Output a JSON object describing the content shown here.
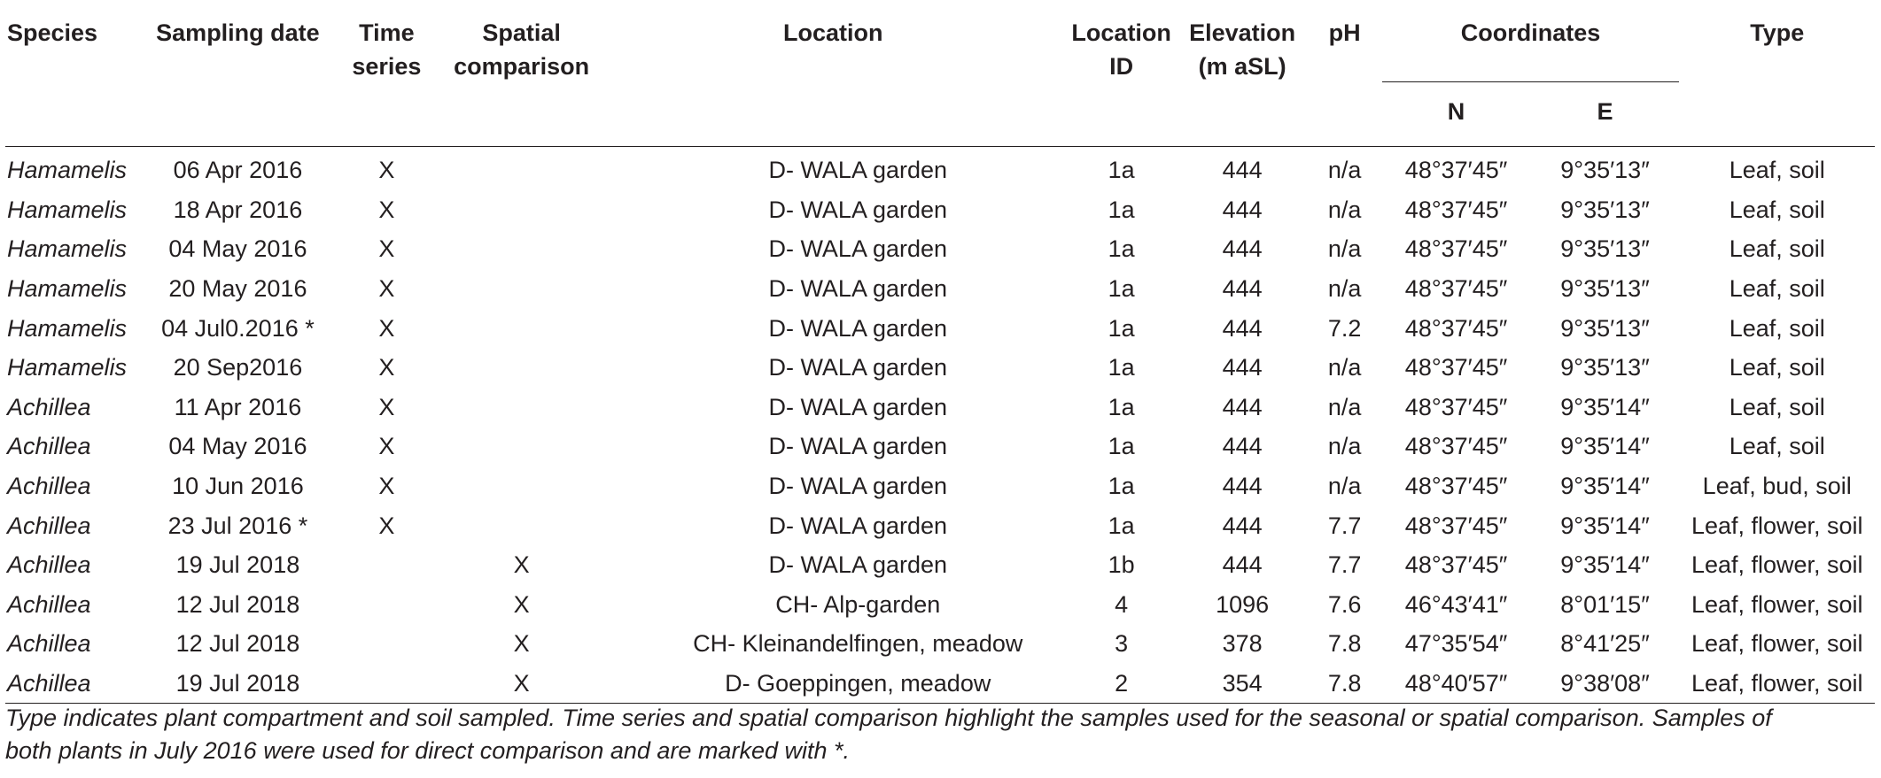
{
  "headers": {
    "species": "Species",
    "sampling_date": "Sampling date",
    "time_series_1": "Time",
    "time_series_2": "series",
    "spatial_1": "Spatial",
    "spatial_2": "comparison",
    "location": "Location",
    "location_id_1": "Location",
    "location_id_2": "ID",
    "elevation_1": "Elevation",
    "elevation_2": "(m aSL)",
    "ph": "pH",
    "coordinates": "Coordinates",
    "coord_n": "N",
    "coord_e": "E",
    "type": "Type"
  },
  "rows": [
    {
      "species": "Hamamelis",
      "date": "06 Apr 2016",
      "time": "X",
      "spatial": "",
      "location": "D- WALA garden",
      "id": "1a",
      "elev": "444",
      "ph": "n/a",
      "n": "48°37′45″",
      "e": "9°35′13″",
      "type": "Leaf, soil"
    },
    {
      "species": "Hamamelis",
      "date": "18 Apr 2016",
      "time": "X",
      "spatial": "",
      "location": "D- WALA garden",
      "id": "1a",
      "elev": "444",
      "ph": "n/a",
      "n": "48°37′45″",
      "e": "9°35′13″",
      "type": "Leaf, soil"
    },
    {
      "species": "Hamamelis",
      "date": "04 May 2016",
      "time": "X",
      "spatial": "",
      "location": "D- WALA garden",
      "id": "1a",
      "elev": "444",
      "ph": "n/a",
      "n": "48°37′45″",
      "e": "9°35′13″",
      "type": "Leaf, soil"
    },
    {
      "species": "Hamamelis",
      "date": "20 May 2016",
      "time": "X",
      "spatial": "",
      "location": "D- WALA garden",
      "id": "1a",
      "elev": "444",
      "ph": "n/a",
      "n": "48°37′45″",
      "e": "9°35′13″",
      "type": "Leaf, soil"
    },
    {
      "species": "Hamamelis",
      "date": "04 Jul0.2016 *",
      "time": "X",
      "spatial": "",
      "location": "D- WALA garden",
      "id": "1a",
      "elev": "444",
      "ph": "7.2",
      "n": "48°37′45″",
      "e": "9°35′13″",
      "type": "Leaf, soil"
    },
    {
      "species": "Hamamelis",
      "date": "20 Sep2016",
      "time": "X",
      "spatial": "",
      "location": "D- WALA garden",
      "id": "1a",
      "elev": "444",
      "ph": "n/a",
      "n": "48°37′45″",
      "e": "9°35′13″",
      "type": "Leaf, soil"
    },
    {
      "species": "Achillea",
      "date": "11 Apr 2016",
      "time": "X",
      "spatial": "",
      "location": "D- WALA garden",
      "id": "1a",
      "elev": "444",
      "ph": "n/a",
      "n": "48°37′45″",
      "e": "9°35′14″",
      "type": "Leaf, soil"
    },
    {
      "species": "Achillea",
      "date": "04 May 2016",
      "time": "X",
      "spatial": "",
      "location": "D- WALA garden",
      "id": "1a",
      "elev": "444",
      "ph": "n/a",
      "n": "48°37′45″",
      "e": "9°35′14″",
      "type": "Leaf, soil"
    },
    {
      "species": "Achillea",
      "date": "10 Jun 2016",
      "time": "X",
      "spatial": "",
      "location": "D- WALA garden",
      "id": "1a",
      "elev": "444",
      "ph": "n/a",
      "n": "48°37′45″",
      "e": "9°35′14″",
      "type": "Leaf, bud, soil"
    },
    {
      "species": "Achillea",
      "date": "23 Jul 2016 *",
      "time": "X",
      "spatial": "",
      "location": "D- WALA garden",
      "id": "1a",
      "elev": "444",
      "ph": "7.7",
      "n": "48°37′45″",
      "e": "9°35′14″",
      "type": "Leaf, flower, soil"
    },
    {
      "species": "Achillea",
      "date": "19 Jul 2018",
      "time": "",
      "spatial": "X",
      "location": "D- WALA garden",
      "id": "1b",
      "elev": "444",
      "ph": "7.7",
      "n": "48°37′45″",
      "e": "9°35′14″",
      "type": "Leaf, flower, soil"
    },
    {
      "species": "Achillea",
      "date": "12 Jul 2018",
      "time": "",
      "spatial": "X",
      "location": "CH- Alp-garden",
      "id": "4",
      "elev": "1096",
      "ph": "7.6",
      "n": "46°43′41″",
      "e": "8°01′15″",
      "type": "Leaf, flower, soil"
    },
    {
      "species": "Achillea",
      "date": "12 Jul 2018",
      "time": "",
      "spatial": "X",
      "location": "CH- Kleinandelfingen, meadow",
      "id": "3",
      "elev": "378",
      "ph": "7.8",
      "n": "47°35′54″",
      "e": "8°41′25″",
      "type": "Leaf, flower, soil"
    },
    {
      "species": "Achillea",
      "date": "19 Jul 2018",
      "time": "",
      "spatial": "X",
      "location": "D- Goeppingen, meadow",
      "id": "2",
      "elev": "354",
      "ph": "7.8",
      "n": "48°40′57″",
      "e": "9°38′08″",
      "type": "Leaf, flower, soil"
    }
  ],
  "footnote_line1": "Type indicates plant compartment and soil sampled. Time series and spatial comparison highlight the samples used for the seasonal or spatial comparison. Samples of",
  "footnote_line2": "both plants in July 2016 were used for direct comparison and are marked with *."
}
